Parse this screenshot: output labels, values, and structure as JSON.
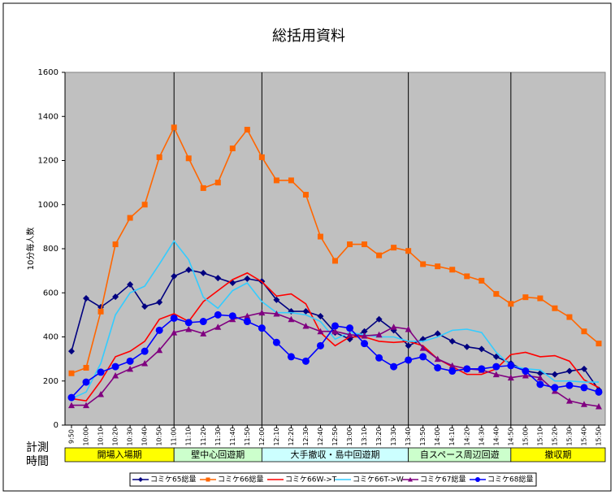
{
  "chart_data": {
    "type": "line",
    "title": "総括用資料",
    "y_label": "10分毎人数",
    "x_label": "計測時間",
    "categories": [
      "9:50",
      "10:00",
      "10:10",
      "10:20",
      "10:30",
      "10:40",
      "10:50",
      "11:00",
      "11:10",
      "11:20",
      "11:30",
      "11:40",
      "11:50",
      "12:00",
      "12:10",
      "12:20",
      "12:30",
      "12:40",
      "12:50",
      "13:00",
      "13:10",
      "13:20",
      "13:30",
      "13:40",
      "13:50",
      "14:00",
      "14:10",
      "14:20",
      "14:30",
      "14:40",
      "14:50",
      "15:00",
      "15:10",
      "15:20",
      "15:30",
      "15:40",
      "15:50"
    ],
    "ylim": [
      0,
      1600
    ],
    "yticks": [
      0,
      200,
      400,
      600,
      800,
      1000,
      1200,
      1400,
      1600
    ],
    "plot_background": "#c0c0c0",
    "periods": [
      {
        "label": "開場入場期",
        "until": "11:00",
        "color": "#ffff00"
      },
      {
        "label": "壁中心回遊期",
        "until": "12:00",
        "color": "#ccffcc"
      },
      {
        "label": "大手撤収・島中回遊期",
        "until": "13:40",
        "color": "#ccffff"
      },
      {
        "label": "自スペース周辺回遊",
        "until": "14:50",
        "color": "#ccffcc"
      },
      {
        "label": "撤収期",
        "color": "#ffff00"
      }
    ],
    "series": [
      {
        "name": "コミケ65総量",
        "color": "#000080",
        "marker": "diamond",
        "values": [
          335,
          575,
          535,
          582,
          638,
          538,
          557,
          675,
          704,
          690,
          667,
          645,
          664,
          652,
          568,
          516,
          516,
          494,
          420,
          390,
          425,
          480,
          430,
          360,
          390,
          415,
          380,
          355,
          345,
          310,
          280,
          245,
          235,
          230,
          245,
          255,
          160
        ]
      },
      {
        "name": "コミケ66総量",
        "color": "#ff6600",
        "marker": "square",
        "values": [
          235,
          260,
          515,
          820,
          940,
          1000,
          1215,
          1350,
          1210,
          1075,
          1100,
          1255,
          1340,
          1215,
          1110,
          1110,
          1045,
          855,
          745,
          820,
          820,
          770,
          805,
          790,
          730,
          720,
          705,
          675,
          655,
          595,
          550,
          580,
          575,
          530,
          490,
          425,
          370
        ]
      },
      {
        "name": "コミケ66W->T",
        "color": "#ff0000",
        "marker": "none",
        "values": [
          120,
          110,
          200,
          310,
          335,
          380,
          480,
          505,
          470,
          560,
          610,
          660,
          690,
          650,
          585,
          595,
          550,
          420,
          360,
          400,
          400,
          380,
          375,
          380,
          360,
          300,
          265,
          230,
          230,
          255,
          320,
          330,
          310,
          315,
          290,
          205,
          170
        ]
      },
      {
        "name": "コミケ66T->W",
        "color": "#33ccff",
        "marker": "none",
        "values": [
          120,
          150,
          280,
          500,
          600,
          630,
          730,
          835,
          750,
          580,
          530,
          610,
          645,
          560,
          510,
          510,
          500,
          470,
          390,
          420,
          410,
          400,
          400,
          380,
          380,
          400,
          430,
          435,
          420,
          330,
          270,
          255,
          250,
          200,
          200,
          195,
          195
        ]
      },
      {
        "name": "コミケ67総量",
        "color": "#800080",
        "marker": "triangle",
        "values": [
          90,
          90,
          140,
          225,
          255,
          280,
          340,
          420,
          435,
          415,
          445,
          480,
          495,
          510,
          505,
          480,
          450,
          425,
          425,
          410,
          405,
          410,
          445,
          435,
          350,
          300,
          270,
          255,
          250,
          230,
          215,
          225,
          215,
          155,
          110,
          95,
          85
        ]
      },
      {
        "name": "コミケ68総量",
        "color": "#0000ff",
        "marker": "circle",
        "values": [
          125,
          195,
          240,
          265,
          290,
          335,
          430,
          485,
          465,
          470,
          500,
          495,
          470,
          440,
          375,
          310,
          290,
          360,
          450,
          440,
          370,
          305,
          265,
          295,
          310,
          260,
          245,
          255,
          255,
          265,
          270,
          245,
          185,
          170,
          180,
          170,
          150
        ]
      }
    ]
  }
}
